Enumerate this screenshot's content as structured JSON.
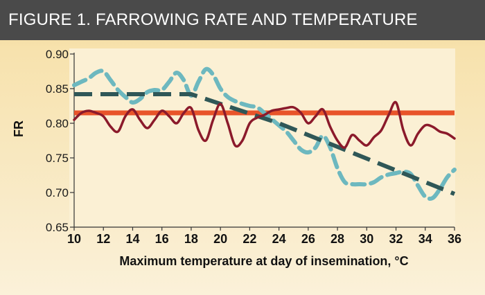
{
  "header": {
    "title": "FIGURE 1. FARROWING RATE AND TEMPERATURE"
  },
  "chart_data": {
    "type": "line",
    "title": "FIGURE 1. FARROWING RATE AND TEMPERATURE",
    "xlabel": "Maximum temperature at day of insemination, °C",
    "ylabel": "FR",
    "xlim": [
      10,
      36
    ],
    "ylim": [
      0.65,
      0.9
    ],
    "x_ticks": [
      10,
      12,
      14,
      16,
      18,
      20,
      22,
      24,
      26,
      28,
      30,
      32,
      34,
      36
    ],
    "y_ticks": [
      "0.65",
      "0.70",
      "0.75",
      "0.80",
      "0.85",
      "0.90"
    ],
    "grid": false,
    "legend": "none",
    "series": [
      {
        "style": "solid-thin",
        "color": "#8b1a2b",
        "x": [
          10,
          10.5,
          11,
          11.5,
          12,
          12.5,
          13,
          13.5,
          14,
          14.5,
          15,
          15.5,
          16,
          16.5,
          17,
          17.5,
          18,
          18.5,
          19,
          19.5,
          20,
          20.5,
          21,
          21.5,
          22,
          22.5,
          23,
          23.5,
          24,
          24.5,
          25,
          25.5,
          26,
          26.5,
          27,
          27.5,
          28,
          28.5,
          29,
          29.5,
          30,
          30.5,
          31,
          31.5,
          32,
          32.5,
          33,
          33.5,
          34,
          34.5,
          35,
          35.5,
          36
        ],
        "y": [
          0.805,
          0.815,
          0.818,
          0.815,
          0.81,
          0.795,
          0.788,
          0.81,
          0.82,
          0.805,
          0.793,
          0.805,
          0.818,
          0.81,
          0.8,
          0.815,
          0.822,
          0.79,
          0.775,
          0.805,
          0.828,
          0.8,
          0.768,
          0.775,
          0.8,
          0.808,
          0.812,
          0.818,
          0.82,
          0.822,
          0.823,
          0.815,
          0.8,
          0.81,
          0.82,
          0.795,
          0.775,
          0.765,
          0.783,
          0.775,
          0.768,
          0.78,
          0.79,
          0.812,
          0.83,
          0.79,
          0.768,
          0.785,
          0.797,
          0.795,
          0.788,
          0.785,
          0.778
        ]
      },
      {
        "style": "solid-thick",
        "color": "#e8542a",
        "x": [
          10,
          36
        ],
        "y": [
          0.815,
          0.815
        ]
      },
      {
        "style": "dashed-thick",
        "color": "#2f5757",
        "x": [
          10,
          18,
          24,
          36
        ],
        "y": [
          0.842,
          0.842,
          0.8,
          0.698
        ]
      },
      {
        "style": "dashed",
        "color": "#6db8bf",
        "x": [
          10,
          10.5,
          11,
          11.5,
          12,
          12.5,
          13,
          13.5,
          14,
          14.5,
          15,
          15.5,
          16,
          16.5,
          17,
          17.5,
          18,
          18.5,
          19,
          19.5,
          20,
          20.5,
          21,
          21.5,
          22,
          22.5,
          23,
          23.5,
          24,
          24.5,
          25,
          25.5,
          26,
          26.5,
          27,
          27.5,
          28,
          28.5,
          29,
          29.5,
          30,
          30.5,
          31,
          31.5,
          32,
          32.5,
          33,
          33.5,
          34,
          34.5,
          35,
          35.5,
          36
        ],
        "y": [
          0.855,
          0.86,
          0.865,
          0.873,
          0.875,
          0.862,
          0.848,
          0.838,
          0.83,
          0.835,
          0.845,
          0.848,
          0.848,
          0.86,
          0.873,
          0.862,
          0.84,
          0.86,
          0.878,
          0.87,
          0.85,
          0.838,
          0.832,
          0.828,
          0.825,
          0.823,
          0.815,
          0.806,
          0.797,
          0.788,
          0.775,
          0.762,
          0.758,
          0.765,
          0.782,
          0.765,
          0.735,
          0.715,
          0.712,
          0.712,
          0.712,
          0.715,
          0.722,
          0.726,
          0.728,
          0.73,
          0.727,
          0.71,
          0.694,
          0.692,
          0.705,
          0.722,
          0.733
        ]
      }
    ]
  }
}
